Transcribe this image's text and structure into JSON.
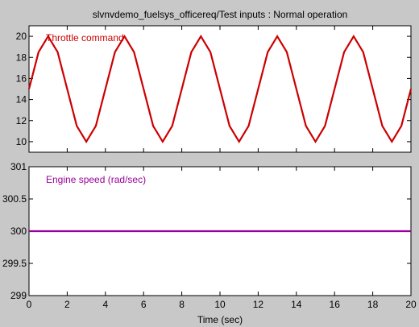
{
  "window": {
    "background": "#c8c8c8",
    "axes_background": "#ffffff"
  },
  "chart_data": [
    {
      "type": "line",
      "title": "slvnvdemo_fuelsys_officereq/Test inputs : Normal operation",
      "xlim": [
        0,
        20
      ],
      "ylim": [
        9,
        21
      ],
      "yticks": [
        10,
        12,
        14,
        16,
        18,
        20
      ],
      "xticks": [],
      "grid": false,
      "series": [
        {
          "name": "Throttle command",
          "color": "#cc0000",
          "x": [
            0,
            0.5,
            1,
            1.5,
            2,
            2.5,
            3,
            3.5,
            4,
            4.5,
            5,
            5.5,
            6,
            6.5,
            7,
            7.5,
            8,
            8.5,
            9,
            9.5,
            10,
            10.5,
            11,
            11.5,
            12,
            12.5,
            13,
            13.5,
            14,
            14.5,
            15,
            15.5,
            16,
            16.5,
            17,
            17.5,
            18,
            18.5,
            19,
            19.5,
            20
          ],
          "y": [
            15,
            18.5,
            20,
            18.5,
            15,
            11.5,
            10,
            11.5,
            15,
            18.5,
            20,
            18.5,
            15,
            11.5,
            10,
            11.5,
            15,
            18.5,
            20,
            18.5,
            15,
            11.5,
            10,
            11.5,
            15,
            18.5,
            20,
            18.5,
            15,
            11.5,
            10,
            11.5,
            15,
            18.5,
            20,
            18.5,
            15,
            11.5,
            10,
            11.5,
            15
          ]
        }
      ]
    },
    {
      "type": "line",
      "title": "",
      "xlabel": "Time (sec)",
      "xlim": [
        0,
        20
      ],
      "ylim": [
        299,
        301
      ],
      "yticks": [
        299,
        299.5,
        300,
        300.5,
        301
      ],
      "xticks": [
        0,
        2,
        4,
        6,
        8,
        10,
        12,
        14,
        16,
        18,
        20
      ],
      "grid": false,
      "series": [
        {
          "name": "Engine speed (rad/sec)",
          "color": "#990099",
          "x": [
            0,
            20
          ],
          "y": [
            300,
            300
          ]
        }
      ]
    }
  ]
}
